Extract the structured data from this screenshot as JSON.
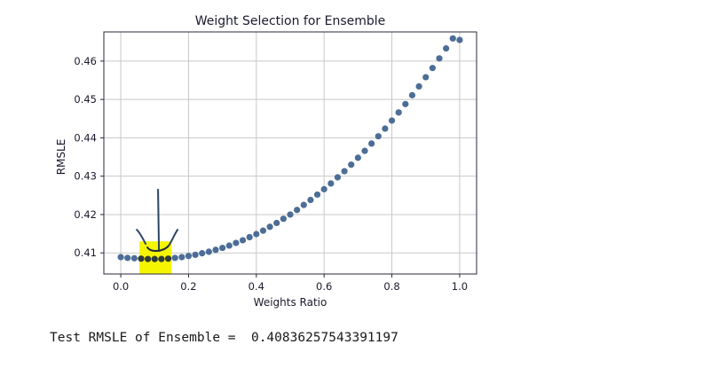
{
  "chart_data": {
    "type": "scatter",
    "title": "Weight Selection for Ensemble",
    "xlabel": "Weights Ratio",
    "ylabel": "RMSLE",
    "xlim": [
      -0.05,
      1.05
    ],
    "ylim": [
      0.4045,
      0.4676
    ],
    "xticks": [
      0.0,
      0.2,
      0.4,
      0.6,
      0.8,
      1.0
    ],
    "xtick_labels": [
      "0.0",
      "0.2",
      "0.4",
      "0.6",
      "0.8",
      "1.0"
    ],
    "yticks": [
      0.41,
      0.42,
      0.43,
      0.44,
      0.45,
      0.46
    ],
    "ytick_labels": [
      "0.41",
      "0.42",
      "0.43",
      "0.44",
      "0.45",
      "0.46"
    ],
    "grid": true,
    "series": [
      {
        "marker_color": "#4c6d96",
        "x": [
          0.0,
          0.02,
          0.04,
          0.06,
          0.08,
          0.1,
          0.12,
          0.14,
          0.16,
          0.18,
          0.2,
          0.22,
          0.24,
          0.26,
          0.28,
          0.3,
          0.32,
          0.34,
          0.36,
          0.38,
          0.4,
          0.42,
          0.44,
          0.46,
          0.48,
          0.5,
          0.52,
          0.54,
          0.56,
          0.58,
          0.6,
          0.62,
          0.64,
          0.66,
          0.68,
          0.7,
          0.72,
          0.74,
          0.76,
          0.78,
          0.8,
          0.82,
          0.84,
          0.86,
          0.88,
          0.9,
          0.92,
          0.94,
          0.96,
          0.98,
          1.0
        ],
        "y": [
          0.4089,
          0.4087,
          0.4086,
          0.4085,
          0.4084,
          0.4084,
          0.4084,
          0.4085,
          0.4087,
          0.4089,
          0.4092,
          0.4095,
          0.4099,
          0.4103,
          0.4108,
          0.4113,
          0.4119,
          0.4126,
          0.4133,
          0.4141,
          0.4149,
          0.4158,
          0.4168,
          0.4178,
          0.4189,
          0.42,
          0.4212,
          0.4225,
          0.4238,
          0.4252,
          0.4266,
          0.4281,
          0.4297,
          0.4313,
          0.433,
          0.4348,
          0.4366,
          0.4385,
          0.4404,
          0.4424,
          0.4445,
          0.4466,
          0.4488,
          0.4511,
          0.4534,
          0.4558,
          0.4582,
          0.4607,
          0.4633,
          0.4659,
          0.4655
        ]
      }
    ],
    "annotation": {
      "highlight_color": "#f5f500",
      "x_range": [
        0.055,
        0.15
      ],
      "y_range": [
        0.4045,
        0.413
      ],
      "arrow_color": "#2b4566",
      "arrow_x": 0.11,
      "arrow_from_y": 0.4265,
      "arrow_to_y": 0.4105
    }
  },
  "output": {
    "text": "Test RMSLE of Ensemble =  0.40836257543391197"
  }
}
